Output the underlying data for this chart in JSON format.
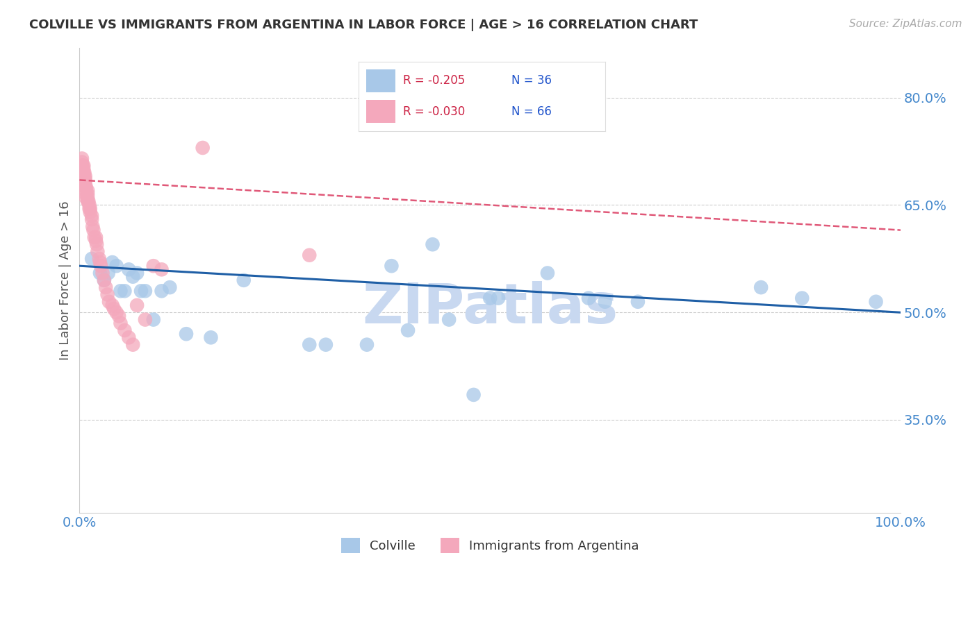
{
  "title": "COLVILLE VS IMMIGRANTS FROM ARGENTINA IN LABOR FORCE | AGE > 16 CORRELATION CHART",
  "source": "Source: ZipAtlas.com",
  "ylabel": "In Labor Force | Age > 16",
  "xlim": [
    0.0,
    1.0
  ],
  "ylim": [
    0.22,
    0.87
  ],
  "yticks": [
    0.35,
    0.5,
    0.65,
    0.8
  ],
  "ytick_labels": [
    "35.0%",
    "50.0%",
    "65.0%",
    "80.0%"
  ],
  "xticks": [
    0.0,
    0.2,
    0.4,
    0.6,
    0.8,
    1.0
  ],
  "xtick_labels": [
    "0.0%",
    "",
    "",
    "",
    "",
    "100.0%"
  ],
  "legend_r_blue": "R = -0.205",
  "legend_n_blue": "N = 36",
  "legend_r_pink": "R = -0.030",
  "legend_n_pink": "N = 66",
  "blue_scatter_x": [
    0.015,
    0.025,
    0.03,
    0.035,
    0.04,
    0.045,
    0.05,
    0.055,
    0.06,
    0.065,
    0.07,
    0.075,
    0.08,
    0.09,
    0.1,
    0.11,
    0.13,
    0.16,
    0.2,
    0.38,
    0.43,
    0.5,
    0.51,
    0.57,
    0.62,
    0.64,
    0.68,
    0.83,
    0.88,
    0.97,
    0.28,
    0.3,
    0.35,
    0.4,
    0.45,
    0.48
  ],
  "blue_scatter_y": [
    0.575,
    0.555,
    0.545,
    0.555,
    0.57,
    0.565,
    0.53,
    0.53,
    0.56,
    0.55,
    0.555,
    0.53,
    0.53,
    0.49,
    0.53,
    0.535,
    0.47,
    0.465,
    0.545,
    0.565,
    0.595,
    0.52,
    0.52,
    0.555,
    0.52,
    0.515,
    0.515,
    0.535,
    0.52,
    0.515,
    0.455,
    0.455,
    0.455,
    0.475,
    0.49,
    0.385
  ],
  "pink_scatter_x": [
    0.003,
    0.003,
    0.003,
    0.003,
    0.003,
    0.003,
    0.004,
    0.004,
    0.004,
    0.005,
    0.005,
    0.005,
    0.005,
    0.005,
    0.006,
    0.006,
    0.006,
    0.006,
    0.007,
    0.007,
    0.007,
    0.007,
    0.008,
    0.008,
    0.008,
    0.008,
    0.01,
    0.01,
    0.01,
    0.01,
    0.011,
    0.012,
    0.012,
    0.013,
    0.013,
    0.015,
    0.015,
    0.016,
    0.017,
    0.018,
    0.02,
    0.02,
    0.021,
    0.022,
    0.024,
    0.025,
    0.026,
    0.028,
    0.03,
    0.032,
    0.034,
    0.036,
    0.04,
    0.042,
    0.045,
    0.048,
    0.05,
    0.055,
    0.06,
    0.065,
    0.07,
    0.08,
    0.09,
    0.1,
    0.15,
    0.28
  ],
  "pink_scatter_y": [
    0.69,
    0.695,
    0.7,
    0.705,
    0.71,
    0.715,
    0.695,
    0.7,
    0.705,
    0.685,
    0.69,
    0.695,
    0.7,
    0.705,
    0.68,
    0.685,
    0.69,
    0.695,
    0.675,
    0.68,
    0.685,
    0.69,
    0.66,
    0.665,
    0.67,
    0.675,
    0.655,
    0.66,
    0.665,
    0.67,
    0.655,
    0.645,
    0.65,
    0.64,
    0.645,
    0.63,
    0.635,
    0.62,
    0.615,
    0.605,
    0.6,
    0.605,
    0.595,
    0.585,
    0.575,
    0.57,
    0.565,
    0.555,
    0.545,
    0.535,
    0.525,
    0.515,
    0.51,
    0.505,
    0.5,
    0.495,
    0.485,
    0.475,
    0.465,
    0.455,
    0.51,
    0.49,
    0.565,
    0.56,
    0.73,
    0.58
  ],
  "blue_line_y_start": 0.565,
  "blue_line_y_end": 0.5,
  "pink_line_y_start": 0.685,
  "pink_line_y_end": 0.615,
  "blue_color": "#a8c8e8",
  "pink_color": "#f4a8bc",
  "blue_line_color": "#1f5fa6",
  "pink_line_color": "#e05878",
  "background_color": "#ffffff",
  "watermark": "ZIPatlas",
  "watermark_color": "#c8d8f0",
  "grid_color": "#cccccc",
  "title_color": "#333333",
  "axis_label_color": "#555555",
  "tick_color": "#4488cc",
  "legend_r_color": "#cc2244",
  "legend_n_color": "#2255cc"
}
